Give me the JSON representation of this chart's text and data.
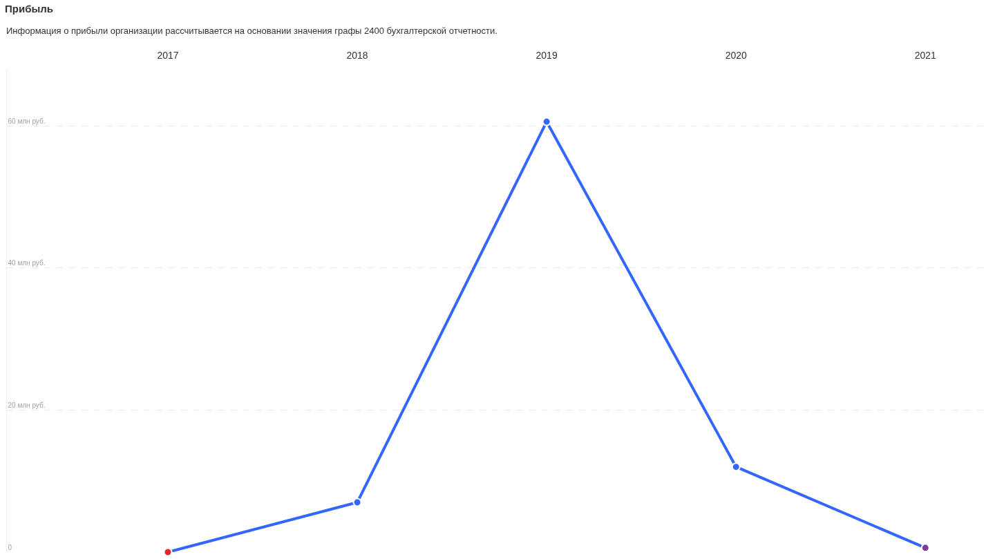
{
  "chart_data": {
    "type": "line",
    "title": "Прибыль",
    "subtitle": "Информация о прибыли организации рассчитывается на основании значения графы 2400 бухгалтерской отчетности.",
    "categories": [
      "2017",
      "2018",
      "2019",
      "2020",
      "2021"
    ],
    "series": [
      {
        "color": "#3366ff",
        "colors": [
          "#e3262b",
          "#3366ff",
          "#3366ff",
          "#3366ff",
          "#7a3f9e"
        ],
        "values": [
          0,
          7,
          60.6,
          12,
          0.6
        ]
      }
    ],
    "ylim": [
      0,
      68
    ],
    "yticks": [
      0,
      {
        "value": 20,
        "label": "20 млн руб."
      },
      {
        "value": 40,
        "label": "40 млн руб."
      },
      {
        "value": 60,
        "label": "60 млн руб."
      }
    ],
    "grid": "y",
    "marker": "circle",
    "line_style": "solid"
  }
}
